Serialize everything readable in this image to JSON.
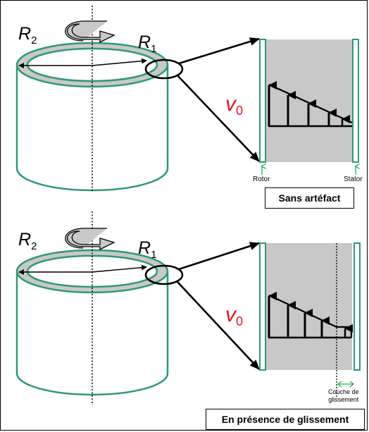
{
  "top": {
    "r2": {
      "symbol": "R",
      "sub": "2"
    },
    "r1": {
      "symbol": "R",
      "sub": "1"
    },
    "v0": {
      "symbol": "v",
      "sub": "0"
    },
    "rotor_label": "Rotor",
    "stator_label": "Stator",
    "caption": "Sans artéfact"
  },
  "bottom": {
    "r2": {
      "symbol": "R",
      "sub": "2"
    },
    "r1": {
      "symbol": "R",
      "sub": "1"
    },
    "v0": {
      "symbol": "v",
      "sub": "0"
    },
    "slip_label_line1": "Couche de",
    "slip_label_line2": "glissement",
    "caption": "En présence de glissement"
  },
  "colors": {
    "wall": "#2e9a6e",
    "fluid_gap": "#c8c8c8",
    "velocity": "#e8141c",
    "arrow_green": "#22b14c"
  }
}
